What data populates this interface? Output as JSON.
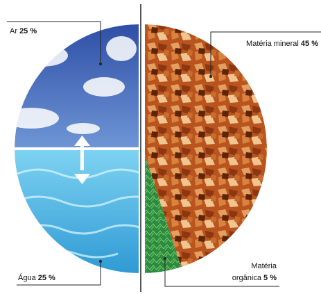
{
  "chart_data": {
    "type": "pie",
    "slices": [
      {
        "label": "Ar",
        "value": 25,
        "unit": "%",
        "color": "#3f63b8"
      },
      {
        "label": "Água",
        "value": 25,
        "unit": "%",
        "color": "#4fb3df"
      },
      {
        "label": "Matéria mineral",
        "value": 45,
        "unit": "%",
        "color": "#c0622a"
      },
      {
        "label": "Matéria orgânica",
        "value": 5,
        "unit": "%",
        "color": "#2f9a4a"
      }
    ],
    "labels": {
      "ar": {
        "name": "Ar",
        "pct": "25 %"
      },
      "agua": {
        "name": "Água",
        "pct": "25 %"
      },
      "mineral": {
        "name": "Matéria mineral",
        "pct": "45 %"
      },
      "organica": {
        "line1": "Matéria",
        "name": "orgânica",
        "pct": "5 %"
      }
    }
  }
}
